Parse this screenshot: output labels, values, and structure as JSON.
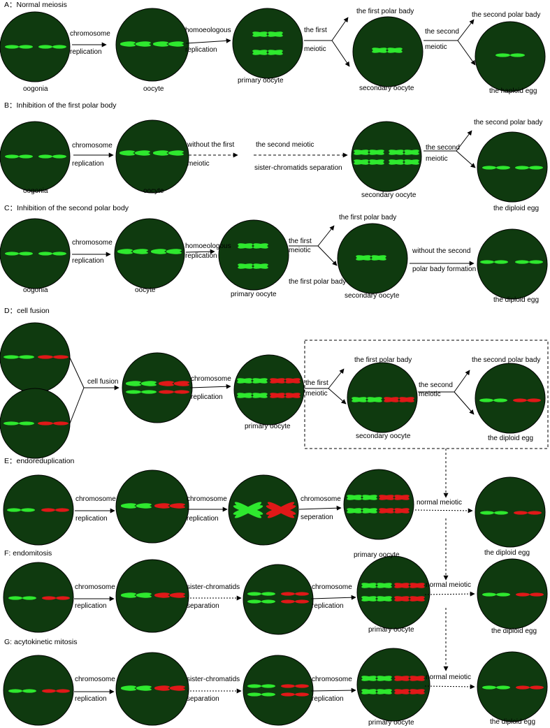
{
  "colors": {
    "cell": "#0f3a0f",
    "green": "#2ee82e",
    "red": "#e01818",
    "arrow": "#000000"
  },
  "sections": {
    "A": {
      "title": "A：Normal meiosis"
    },
    "B": {
      "title": "B：Inhibition of the first polar body"
    },
    "C": {
      "title": "C：Inhibition of the second polar body"
    },
    "D": {
      "title": "D：cell fusion"
    },
    "E": {
      "title": "E：endoreduplication"
    },
    "F": {
      "title": "F: endomitosis"
    },
    "G": {
      "title": "G: acytokinetic mitosis"
    }
  },
  "labels": {
    "oogonia": "oogonia",
    "oocyte": "oocyte",
    "primary_oocyte": "primary oocyte",
    "secondary_oocyte": "secondary oocyte",
    "haploid_egg": "the haploid egg",
    "diploid_egg": "the diploid egg",
    "chromosome": "chromosome",
    "replication": "replication",
    "homoeologous": "homoeologous",
    "the_first": "the first",
    "the_second": "the second",
    "meiotic": "meiotic",
    "first_polar_bady": "the first polar bady",
    "second_polar_bady": "the second polar bady",
    "without_first": "without the first",
    "second_meiotic": "the second meiotic",
    "sister_separation": "sister-chromatids separation",
    "without_second": "without the second",
    "polar_bady_formation": "polar bady formation",
    "cell_fusion": "cell fusion",
    "seperation": "seperation",
    "sister_chromatids": "sister-chromatids",
    "separation": "separation",
    "normal_meiotic": "normal meiotic"
  }
}
